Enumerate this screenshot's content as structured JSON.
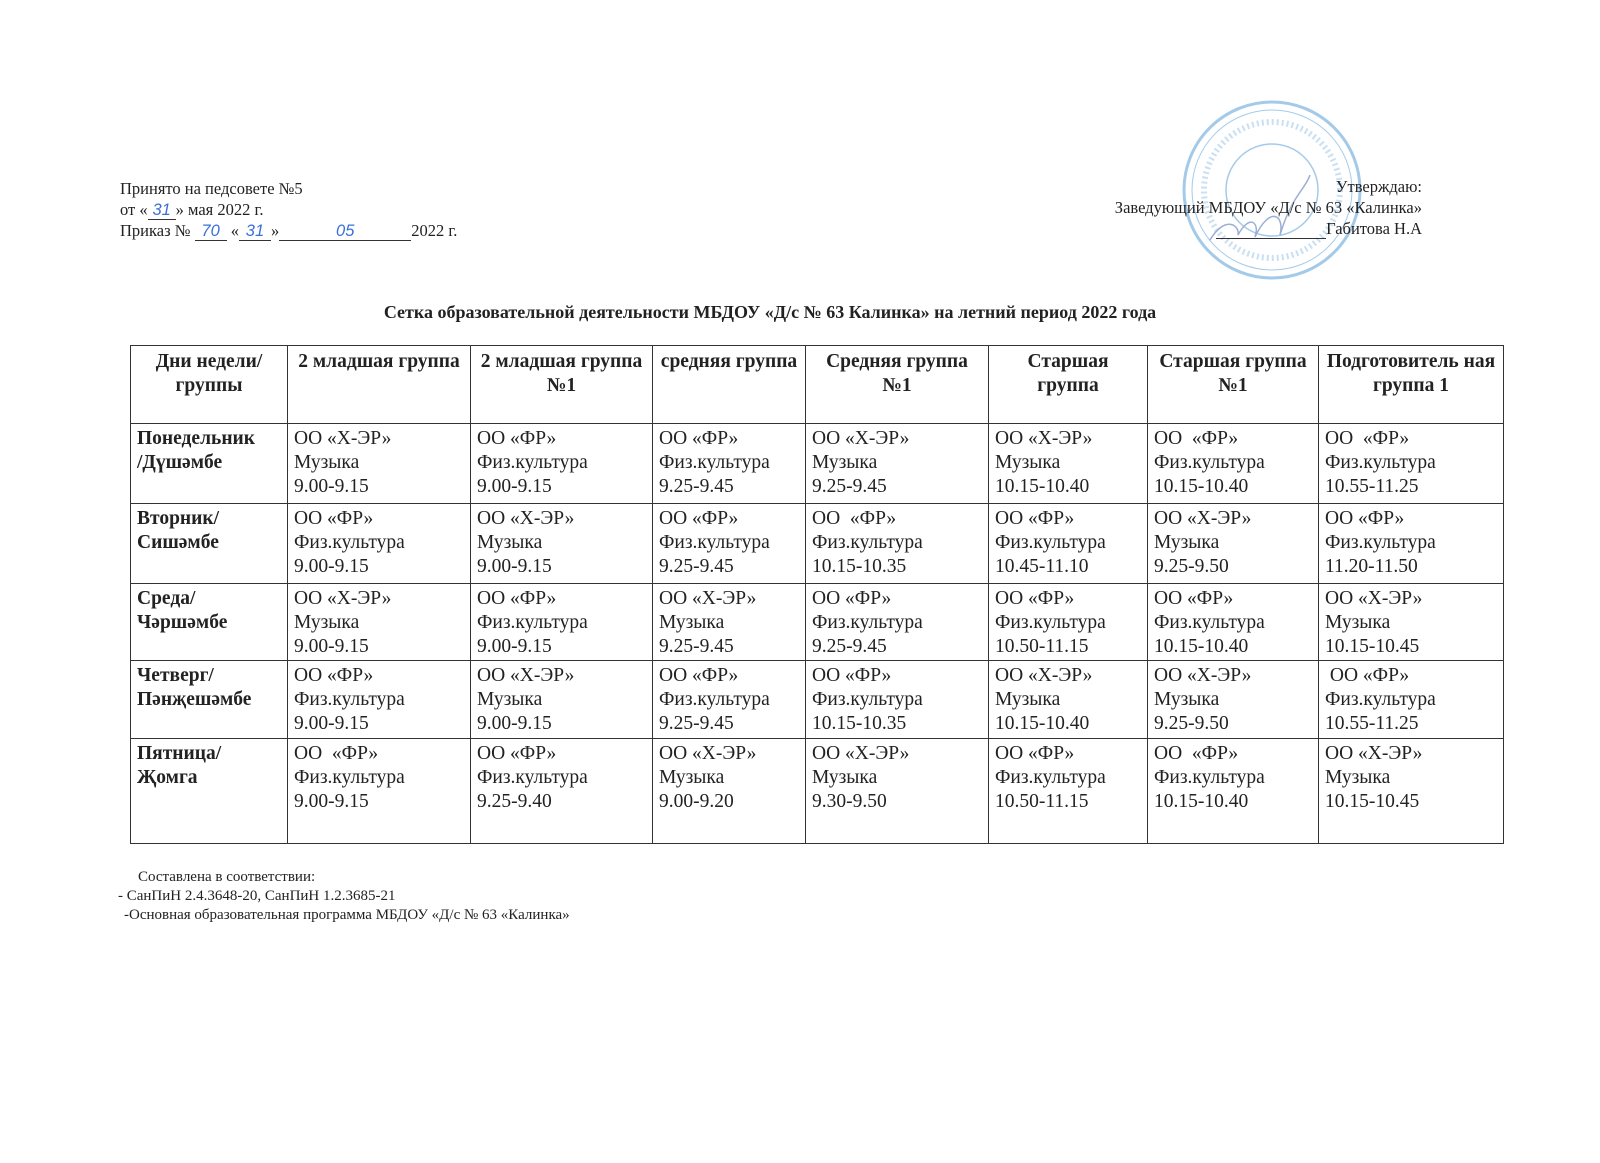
{
  "header_left": {
    "line1": "Принято на педсовете №5",
    "line2_prefix": "от «",
    "line2_day": "31",
    "line2_suffix": "» мая 2022 г.",
    "line3_prefix": "Приказ №",
    "order_number": "70",
    "line3_open": "«",
    "order_day": "31",
    "line3_close": "»",
    "order_month": "05",
    "line3_year": "2022 г."
  },
  "header_right": {
    "approve": "Утверждаю:",
    "position": "Заведующий МБДОУ «Д/с № 63 «Калинка»",
    "name": "Габитова Н.А"
  },
  "stamp": {
    "text_outer": "МУНИЦИПАЛЬНОЕ БЮДЖЕТНОЕ ДОШКОЛЬНОЕ ОБРАЗОВАТЕЛЬНОЕ УЧРЕЖДЕНИЕ",
    "text_inner": "МБДОУ «Д/с №63 «Калинка»",
    "color": "#5aa0d8"
  },
  "title": "Сетка образовательной деятельности МБДОУ «Д/с № 63 Калинка» на летний период 2022 года",
  "table": {
    "columns": [
      "Дни недели/ группы",
      "2 младшая группа",
      "2 младшая группа №1",
      "средняя группа",
      "Средняя группа №1",
      "Старшая группа",
      "Старшая группа №1",
      "Подготовитель ная группа 1"
    ],
    "rows": [
      {
        "day": [
          "Понедельник",
          "/Дүшәмбе"
        ],
        "cells": [
          [
            "ОО «Х-ЭР»",
            "Музыка",
            "9.00-9.15"
          ],
          [
            "ОО «ФР»",
            "Физ.культура",
            "9.00-9.15"
          ],
          [
            "ОО «ФР»",
            "Физ.культура",
            "9.25-9.45"
          ],
          [
            "ОО «Х-ЭР»",
            "Музыка",
            "9.25-9.45"
          ],
          [
            "ОО «Х-ЭР»",
            "Музыка",
            "10.15-10.40"
          ],
          [
            "ОО  «ФР»",
            "Физ.культура",
            "10.15-10.40"
          ],
          [
            "ОО  «ФР»",
            "Физ.культура",
            "10.55-11.25"
          ]
        ]
      },
      {
        "day": [
          "Вторник/",
          "Сишәмбе"
        ],
        "cells": [
          [
            "ОО «ФР»",
            "Физ.культура",
            "9.00-9.15"
          ],
          [
            "ОО «Х-ЭР»",
            "Музыка",
            "9.00-9.15"
          ],
          [
            "ОО «ФР»",
            "Физ.культура",
            "9.25-9.45"
          ],
          [
            "ОО  «ФР»",
            "Физ.культура",
            "10.15-10.35"
          ],
          [
            "ОО «ФР»",
            "Физ.культура",
            "10.45-11.10"
          ],
          [
            "ОО «Х-ЭР»",
            "Музыка",
            "9.25-9.50"
          ],
          [
            "ОО «ФР»",
            "Физ.культура",
            "11.20-11.50"
          ]
        ]
      },
      {
        "day": [
          "Среда/",
          "Чәршәмбе"
        ],
        "cells": [
          [
            "ОО «Х-ЭР»",
            "Музыка",
            "9.00-9.15"
          ],
          [
            "ОО «ФР»",
            "Физ.культура",
            "9.00-9.15"
          ],
          [
            "ОО «Х-ЭР»",
            "Музыка",
            "9.25-9.45"
          ],
          [
            "ОО «ФР»",
            "Физ.культура",
            "9.25-9.45"
          ],
          [
            "ОО «ФР»",
            "Физ.культура",
            "10.50-11.15"
          ],
          [
            "ОО «ФР»",
            "Физ.культура",
            "10.15-10.40"
          ],
          [
            "ОО «Х-ЭР»",
            "Музыка",
            "10.15-10.45"
          ]
        ]
      },
      {
        "day": [
          "Четверг/",
          "Пәнҗешәмбе"
        ],
        "cells": [
          [
            "ОО «ФР»",
            "Физ.культура",
            "9.00-9.15"
          ],
          [
            "ОО «Х-ЭР»",
            "Музыка",
            "9.00-9.15"
          ],
          [
            "ОО «ФР»",
            "Физ.культура",
            "9.25-9.45"
          ],
          [
            "ОО «ФР»",
            "Физ.культура",
            "10.15-10.35"
          ],
          [
            "ОО «Х-ЭР»",
            "Музыка",
            "10.15-10.40"
          ],
          [
            "ОО «Х-ЭР»",
            "Музыка",
            "9.25-9.50"
          ],
          [
            " ОО «ФР»",
            "Физ.культура",
            "10.55-11.25"
          ]
        ]
      },
      {
        "day": [
          "Пятница/",
          "Җомга"
        ],
        "cells": [
          [
            "ОО  «ФР»",
            "Физ.культура",
            "9.00-9.15"
          ],
          [
            "ОО «ФР»",
            "Физ.культура",
            "9.25-9.40"
          ],
          [
            "ОО «Х-ЭР»",
            "Музыка",
            "9.00-9.20"
          ],
          [
            "ОО «Х-ЭР»",
            "Музыка",
            "9.30-9.50"
          ],
          [
            "ОО «ФР»",
            "Физ.культура",
            "10.50-11.15"
          ],
          [
            "ОО  «ФР»",
            "Физ.культура",
            "10.15-10.40"
          ],
          [
            "ОО «Х-ЭР»",
            "Музыка",
            "10.15-10.45"
          ]
        ]
      }
    ]
  },
  "footer": {
    "line1": "Составлена в соответствии:",
    "line2": "- СанПиН 2.4.3648-20, СанПиН 1.2.3685-21",
    "line3": "-Основная образовательная программа МБДОУ «Д/с № 63 «Калинка»"
  }
}
